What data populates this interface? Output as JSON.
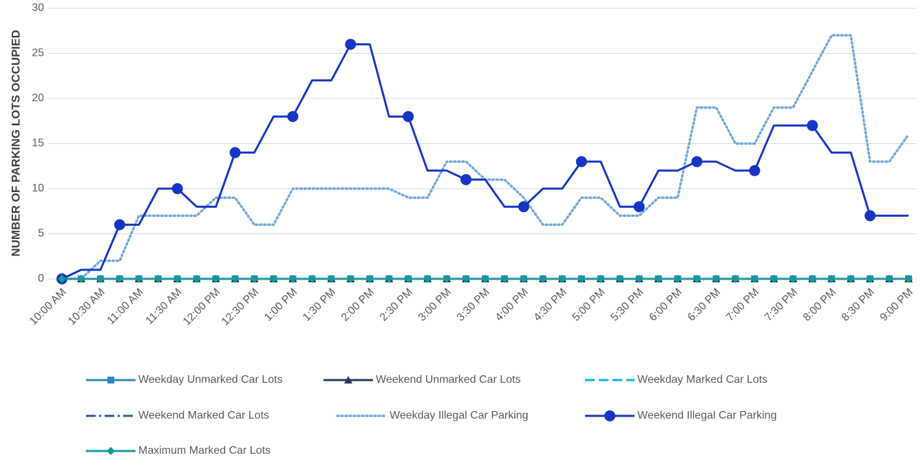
{
  "chart_data": {
    "type": "line",
    "y_label": "NUMBER OF PARKING LOTS OCCUPIED",
    "categories": [
      "10:00 AM",
      null,
      "10:30 AM",
      null,
      "11:00 AM",
      null,
      "11:30 AM",
      null,
      "12:00 PM",
      null,
      "12:30 PM",
      null,
      "1:00 PM",
      null,
      "1:30 PM",
      null,
      "2:00 PM",
      null,
      "2:30 PM",
      null,
      "3:00 PM",
      null,
      "3:30 PM",
      null,
      "4:00 PM",
      null,
      "4:30 PM",
      null,
      "5:00 PM",
      null,
      "5:30 PM",
      null,
      "6:00 PM",
      null,
      "6:30 PM",
      null,
      "7:00 PM",
      null,
      "7:30 PM",
      null,
      "8:00 PM",
      null,
      "8:30 PM",
      null,
      "9:00 PM"
    ],
    "ylim": [
      0,
      30
    ],
    "yticks": [
      0,
      5,
      10,
      15,
      20,
      25,
      30
    ],
    "grid": true,
    "legend": "bottom",
    "series": [
      {
        "name": "Weekday Unmarked Car Lots",
        "color": "#2e86c1",
        "style": "solid",
        "marker": "square",
        "values": [
          0,
          0,
          0,
          0,
          0,
          0,
          0,
          0,
          0,
          0,
          0,
          0,
          0,
          0,
          0,
          0,
          0,
          0,
          0,
          0,
          0,
          0,
          0,
          0,
          0,
          0,
          0,
          0,
          0,
          0,
          0,
          0,
          0,
          0,
          0,
          0,
          0,
          0,
          0,
          0,
          0,
          0,
          0,
          0,
          0
        ]
      },
      {
        "name": "Weekend Unmarked Car Lots",
        "color": "#1f3864",
        "style": "solid",
        "marker": "triangle",
        "values": [
          0,
          0,
          0,
          0,
          0,
          0,
          0,
          0,
          0,
          0,
          0,
          0,
          0,
          0,
          0,
          0,
          0,
          0,
          0,
          0,
          0,
          0,
          0,
          0,
          0,
          0,
          0,
          0,
          0,
          0,
          0,
          0,
          0,
          0,
          0,
          0,
          0,
          0,
          0,
          0,
          0,
          0,
          0,
          0,
          0
        ]
      },
      {
        "name": "Weekday Marked Car Lots",
        "color": "#00b0f0",
        "style": "dash",
        "marker": "none",
        "values": [
          0,
          0,
          0,
          0,
          0,
          0,
          0,
          0,
          0,
          0,
          0,
          0,
          0,
          0,
          0,
          0,
          0,
          0,
          0,
          0,
          0,
          0,
          0,
          0,
          0,
          0,
          0,
          0,
          0,
          0,
          0,
          0,
          0,
          0,
          0,
          0,
          0,
          0,
          0,
          0,
          0,
          0,
          0,
          0,
          0
        ]
      },
      {
        "name": "Weekend Marked Car Lots",
        "color": "#2f5597",
        "style": "dashdot",
        "marker": "none",
        "values": [
          0,
          0,
          0,
          0,
          0,
          0,
          0,
          0,
          0,
          0,
          0,
          0,
          0,
          0,
          0,
          0,
          0,
          0,
          0,
          0,
          0,
          0,
          0,
          0,
          0,
          0,
          0,
          0,
          0,
          0,
          0,
          0,
          0,
          0,
          0,
          0,
          0,
          0,
          0,
          0,
          0,
          0,
          0,
          0,
          0
        ]
      },
      {
        "name": "Weekday Illegal Car Parking",
        "color": "#6fa8dc",
        "style": "dot",
        "marker": "none",
        "values": [
          0,
          0,
          2,
          2,
          7,
          7,
          7,
          7,
          9,
          9,
          6,
          6,
          10,
          10,
          10,
          10,
          10,
          10,
          9,
          9,
          13,
          13,
          11,
          11,
          9,
          6,
          6,
          9,
          9,
          7,
          7,
          9,
          9,
          19,
          19,
          15,
          15,
          19,
          19,
          23,
          27,
          27,
          13,
          13,
          16
        ]
      },
      {
        "name": "Weekend Illegal Car Parking",
        "color": "#1535c4",
        "style": "solid",
        "marker": "circle",
        "values": [
          0,
          1,
          1,
          6,
          6,
          10,
          10,
          8,
          8,
          14,
          14,
          18,
          18,
          22,
          22,
          26,
          26,
          18,
          18,
          12,
          12,
          11,
          11,
          8,
          8,
          10,
          10,
          13,
          13,
          8,
          8,
          12,
          12,
          13,
          13,
          12,
          12,
          17,
          17,
          17,
          14,
          14,
          7,
          7,
          7
        ]
      },
      {
        "name": "Maximum Marked Car Lots",
        "color": "#17989a",
        "style": "solid",
        "marker": "diamond",
        "values": [
          0,
          0,
          0,
          0,
          0,
          0,
          0,
          0,
          0,
          0,
          0,
          0,
          0,
          0,
          0,
          0,
          0,
          0,
          0,
          0,
          0,
          0,
          0,
          0,
          0,
          0,
          0,
          0,
          0,
          0,
          0,
          0,
          0,
          0,
          0,
          0,
          0,
          0,
          0,
          0,
          0,
          0,
          0,
          0,
          0
        ]
      }
    ]
  }
}
